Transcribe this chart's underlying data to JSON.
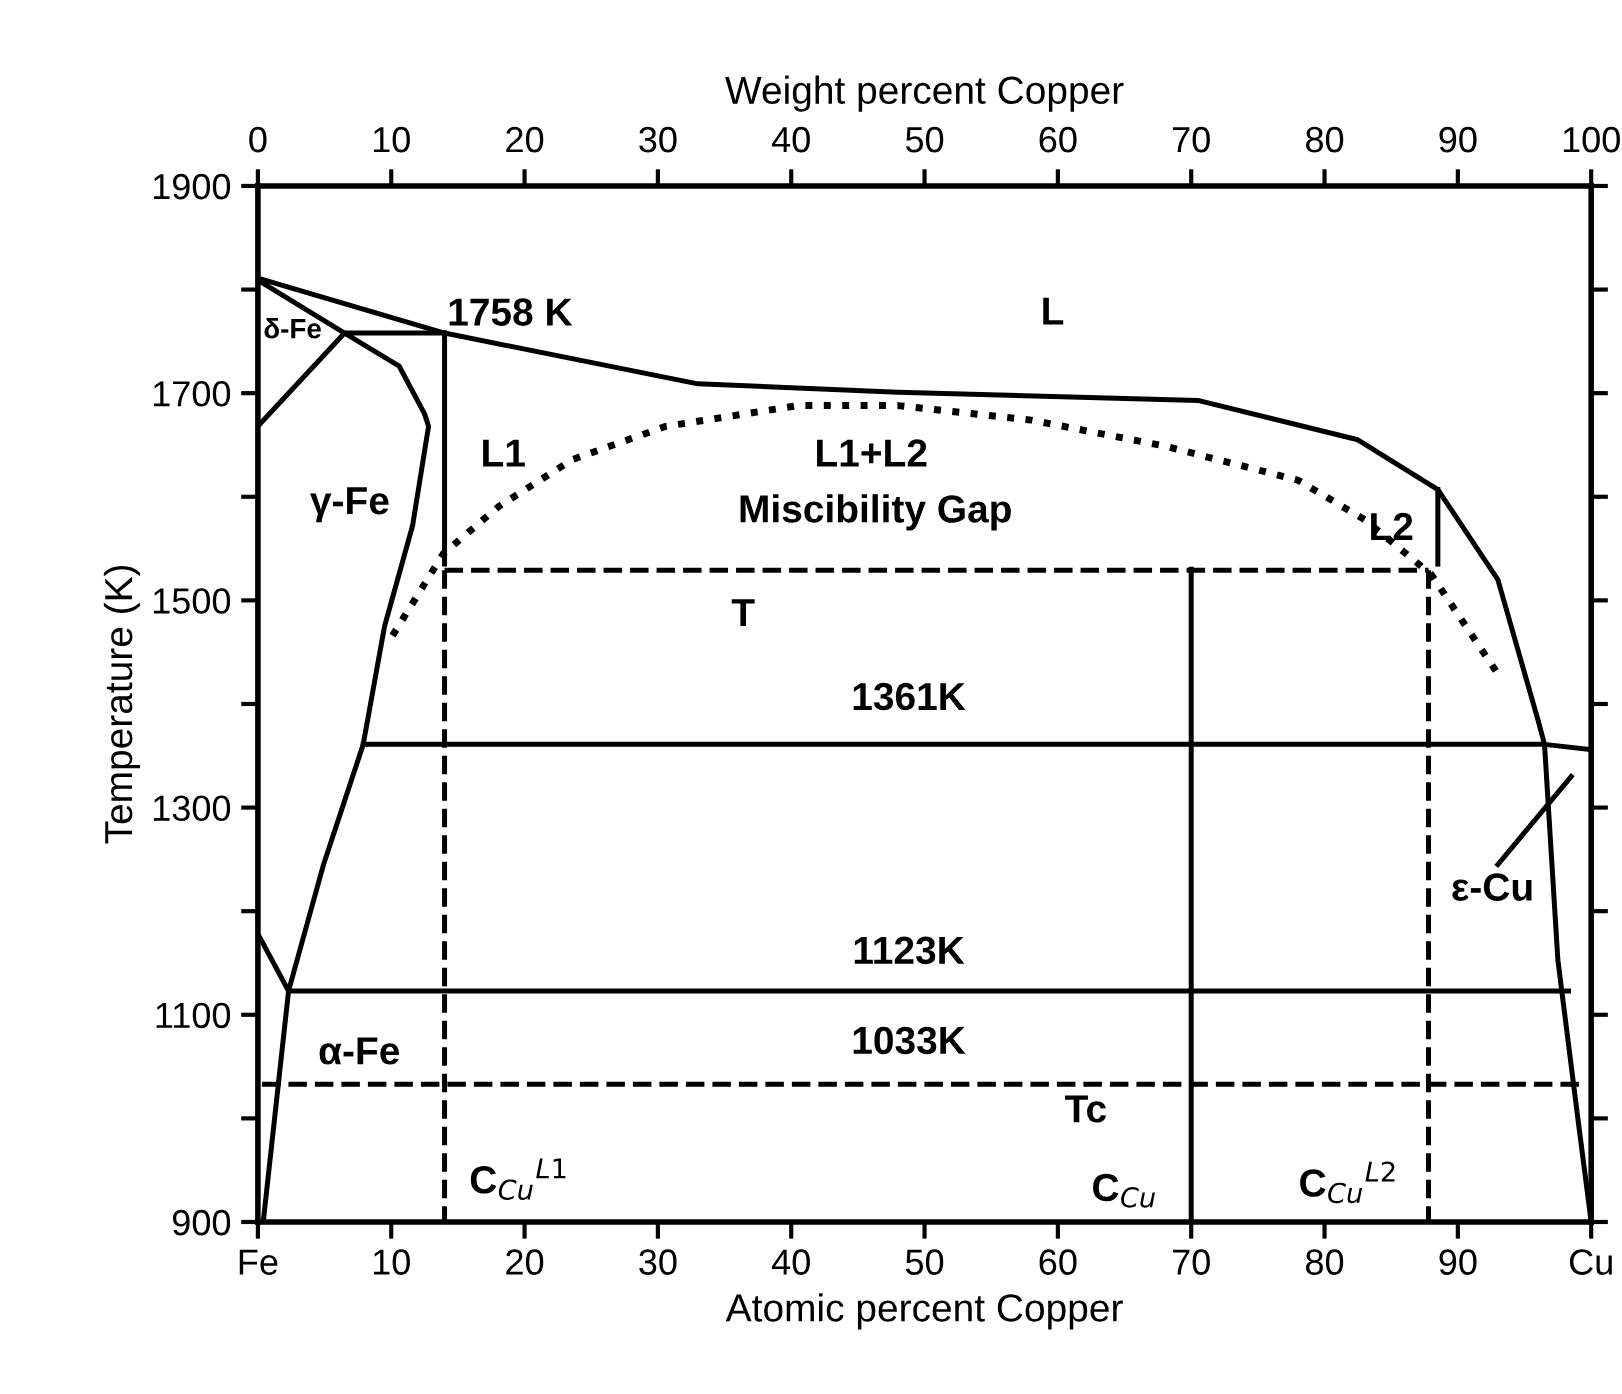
{
  "chart_data": {
    "type": "line",
    "xlabel": "Atomic percent Copper",
    "ylabel": "Temperature (K)",
    "x2label": "Weight percent Copper",
    "xlim": [
      0,
      100
    ],
    "xticks": [
      {
        "value": 0,
        "label": "Fe"
      },
      10,
      20,
      30,
      40,
      50,
      60,
      70,
      80,
      90,
      {
        "value": 100,
        "label": "Cu"
      }
    ],
    "x2lim": [
      0,
      100
    ],
    "x2ticks": [
      0,
      10,
      20,
      30,
      40,
      50,
      60,
      70,
      80,
      90,
      100
    ],
    "ylim": [
      900,
      1900
    ],
    "yticks": [
      900,
      {
        "value": 1000,
        "label": null
      },
      1100,
      {
        "value": 1200,
        "label": null
      },
      1300,
      {
        "value": 1400,
        "label": null
      },
      1500,
      {
        "value": 1600,
        "label": null
      },
      1700,
      {
        "value": 1800,
        "label": null
      },
      1900
    ],
    "grid": false,
    "legend": false,
    "marker": "none",
    "series": [
      {
        "color": "#000000",
        "line_style": "solid",
        "x": [
          0,
          14,
          33,
          48,
          70.5,
          82.5,
          88.5,
          93,
          96,
          96.5,
          97.5,
          99,
          100
        ],
        "values": [
          1811,
          1758,
          1709,
          1701,
          1693,
          1655,
          1607,
          1520,
          1385,
          1361,
          1153,
          1000,
          900
        ]
      },
      {
        "color": "#000000",
        "line_style": "solid",
        "x": [
          0,
          6.5,
          0
        ],
        "values": [
          1809,
          1758,
          1668
        ]
      },
      {
        "color": "#000000",
        "line_style": "solid",
        "x": [
          14,
          6.5,
          10.6,
          12.5,
          12.8,
          11.6,
          9.5,
          7.9,
          4.9,
          2.3,
          0.4
        ],
        "values": [
          1758,
          1758,
          1726,
          1680,
          1668,
          1572,
          1475,
          1361,
          1244,
          1123,
          900
        ]
      },
      {
        "color": "#000000",
        "line_style": "solid",
        "x": [
          7.9,
          96.5,
          100
        ],
        "values": [
          1361,
          1361,
          1356
        ]
      },
      {
        "color": "#000000",
        "line_style": "solid",
        "x": [
          0,
          2.3,
          98.3
        ],
        "values": [
          1178,
          1123,
          1123
        ]
      },
      {
        "color": "#000000",
        "line_style": "dashed",
        "x": [
          0.3,
          99.3
        ],
        "values": [
          1033,
          1033
        ]
      },
      {
        "color": "#000000",
        "line_style": "dotted",
        "x": [
          10.1,
          13.9,
          18.1,
          23.6,
          30.6,
          40.5,
          48,
          58,
          68,
          78,
          83,
          88,
          93
        ],
        "values": [
          1466,
          1545,
          1591,
          1636,
          1668,
          1688,
          1688,
          1674,
          1649,
          1616,
          1578,
          1525,
          1429
        ]
      },
      {
        "color": "#000000",
        "line_style": "dashed",
        "x": [
          14,
          87.8
        ],
        "values": [
          1529,
          1529
        ]
      },
      {
        "color": "#000000",
        "line_style": "dashed",
        "x": [
          14,
          14
        ],
        "values": [
          1529,
          900
        ]
      },
      {
        "color": "#000000",
        "line_style": "dashed",
        "x": [
          87.8,
          87.8
        ],
        "values": [
          1529,
          900
        ]
      },
      {
        "color": "#000000",
        "line_style": "solid",
        "x": [
          14,
          14
        ],
        "values": [
          1535,
          1758
        ]
      },
      {
        "color": "#000000",
        "line_style": "solid",
        "x": [
          88.5,
          88.5
        ],
        "values": [
          1535,
          1607
        ]
      },
      {
        "color": "#000000",
        "line_style": "solid",
        "x": [
          70,
          70
        ],
        "values": [
          900,
          1530
        ]
      },
      {
        "color": "#000000",
        "line_style": "solid",
        "x": [
          93,
          98.5
        ],
        "values": [
          1245,
          1330
        ]
      }
    ],
    "annotations": [
      "1758 K",
      "L",
      "L1",
      "L1+L2",
      "Miscibility Gap",
      "γ-Fe",
      "δ-Fe",
      "L2",
      "T",
      "1361K",
      "1123K",
      "1033K",
      "α-Fe",
      "Tc",
      "C$_{Cu}$$^{L1}$",
      "C$_{Cu}$",
      "C$_{Cu}$$^{L2}$",
      "ε-Cu"
    ]
  }
}
